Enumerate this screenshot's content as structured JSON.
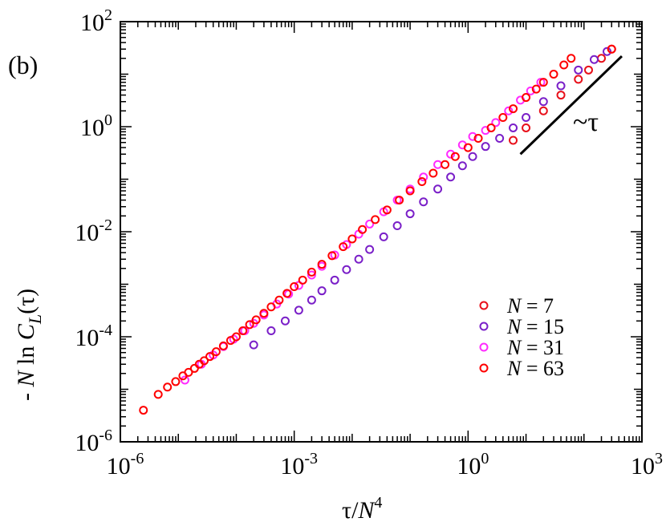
{
  "chart_data": {
    "type": "scatter",
    "panel_label": "(b)",
    "xscale": "log",
    "yscale": "log",
    "xlim": [
      1e-06,
      1000
    ],
    "ylim": [
      1e-06,
      100
    ],
    "grid": false,
    "legend_position": "bottom-right",
    "x_ticks": [
      {
        "base": "10",
        "exp": "-6"
      },
      {
        "base": "10",
        "exp": "-3"
      },
      {
        "base": "10",
        "exp": "0"
      },
      {
        "base": "10",
        "exp": "3"
      }
    ],
    "y_ticks": [
      {
        "base": "10",
        "exp": "-6"
      },
      {
        "base": "10",
        "exp": "-4"
      },
      {
        "base": "10",
        "exp": "-2"
      },
      {
        "base": "10",
        "exp": "0"
      },
      {
        "base": "10",
        "exp": "2"
      }
    ],
    "xlabel": {
      "tau": "τ",
      "slash": "/",
      "N": "N",
      "exp": "4"
    },
    "ylabel": {
      "prefix": "- ",
      "N": "N",
      "ln": " ln ",
      "C": "C",
      "sub": "L",
      "arg": "(τ)"
    },
    "series": [
      {
        "name": "N = 7",
        "legend_var": "N",
        "legend_val": " = 7",
        "color": "#e8101a",
        "x": [
          6.0,
          10,
          20,
          40,
          80,
          120,
          200,
          300
        ],
        "y": [
          0.55,
          0.95,
          2.0,
          4.0,
          8.0,
          12.0,
          20.0,
          30.0
        ]
      },
      {
        "name": "N = 15",
        "legend_var": "N",
        "legend_val": " = 15",
        "color": "#7a1fc8",
        "x": [
          0.0002,
          0.0004,
          0.0007,
          0.0012,
          0.002,
          0.003,
          0.005,
          0.008,
          0.013,
          0.02,
          0.035,
          0.06,
          0.1,
          0.17,
          0.3,
          0.5,
          0.8,
          1.2,
          2.0,
          3.5,
          6.0,
          10,
          20,
          40,
          80,
          150,
          250
        ],
        "y": [
          7e-05,
          0.00013,
          0.0002,
          0.00032,
          0.0005,
          0.00075,
          0.0012,
          0.0019,
          0.003,
          0.0046,
          0.008,
          0.013,
          0.022,
          0.037,
          0.065,
          0.11,
          0.18,
          0.27,
          0.42,
          0.6,
          0.95,
          1.5,
          3.0,
          6.0,
          12.0,
          19.0,
          27.0
        ]
      },
      {
        "name": "N = 31",
        "legend_var": "N",
        "legend_val": " = 31",
        "color": "#ff2bff",
        "x": [
          1.3e-05,
          2.5e-05,
          4e-05,
          6e-05,
          9e-05,
          0.00014,
          0.0002,
          0.0003,
          0.0005,
          0.0008,
          0.0012,
          0.002,
          0.003,
          0.005,
          0.008,
          0.013,
          0.02,
          0.035,
          0.06,
          0.1,
          0.17,
          0.3,
          0.5,
          0.8,
          1.2,
          2.0,
          3.0,
          5.0,
          8.0,
          12.0,
          18.0
        ],
        "y": [
          1.5e-05,
          3e-05,
          4.5e-05,
          6.5e-05,
          9e-05,
          0.00013,
          0.00018,
          0.00026,
          0.00042,
          0.00065,
          0.00095,
          0.0015,
          0.0022,
          0.0036,
          0.0057,
          0.009,
          0.014,
          0.024,
          0.04,
          0.065,
          0.11,
          0.19,
          0.3,
          0.45,
          0.65,
          0.85,
          1.2,
          2.0,
          3.2,
          4.8,
          7.0
        ]
      },
      {
        "name": "N = 63",
        "legend_var": "N",
        "legend_val": " = 63",
        "color": "#ff0000",
        "x": [
          2.5e-06,
          4.5e-06,
          6.5e-06,
          9e-06,
          1.2e-05,
          1.5e-05,
          1.9e-05,
          2.3e-05,
          2.8e-05,
          3.5e-05,
          4.5e-05,
          6e-05,
          8e-05,
          0.0001,
          0.00013,
          0.00017,
          0.00022,
          0.0003,
          0.0004,
          0.00055,
          0.00075,
          0.001,
          0.0014,
          0.002,
          0.003,
          0.0045,
          0.007,
          0.01,
          0.015,
          0.025,
          0.04,
          0.065,
          0.1,
          0.16,
          0.25,
          0.4,
          0.6,
          1.0,
          1.5,
          2.5,
          4.0,
          6.0,
          10.0,
          15.0,
          20.0,
          30.0,
          45.0,
          60.0,
          300.0
        ],
        "y": [
          4e-06,
          8e-06,
          1.1e-05,
          1.4e-05,
          1.8e-05,
          2.1e-05,
          2.5e-05,
          3e-05,
          3.5e-05,
          4.2e-05,
          5.2e-05,
          6.7e-05,
          8.5e-05,
          0.0001,
          0.00013,
          0.00017,
          0.00021,
          0.00028,
          0.00037,
          0.0005,
          0.00067,
          0.0009,
          0.0012,
          0.0017,
          0.0024,
          0.0035,
          0.0052,
          0.0073,
          0.011,
          0.017,
          0.026,
          0.04,
          0.06,
          0.09,
          0.13,
          0.19,
          0.27,
          0.4,
          0.6,
          0.95,
          1.5,
          2.2,
          3.6,
          5.2,
          7.0,
          10.0,
          15.0,
          20.0,
          30.0
        ]
      }
    ],
    "annotation": {
      "label": "~τ",
      "x": [
        8,
        450
      ],
      "y": [
        0.3,
        22.0
      ]
    }
  }
}
